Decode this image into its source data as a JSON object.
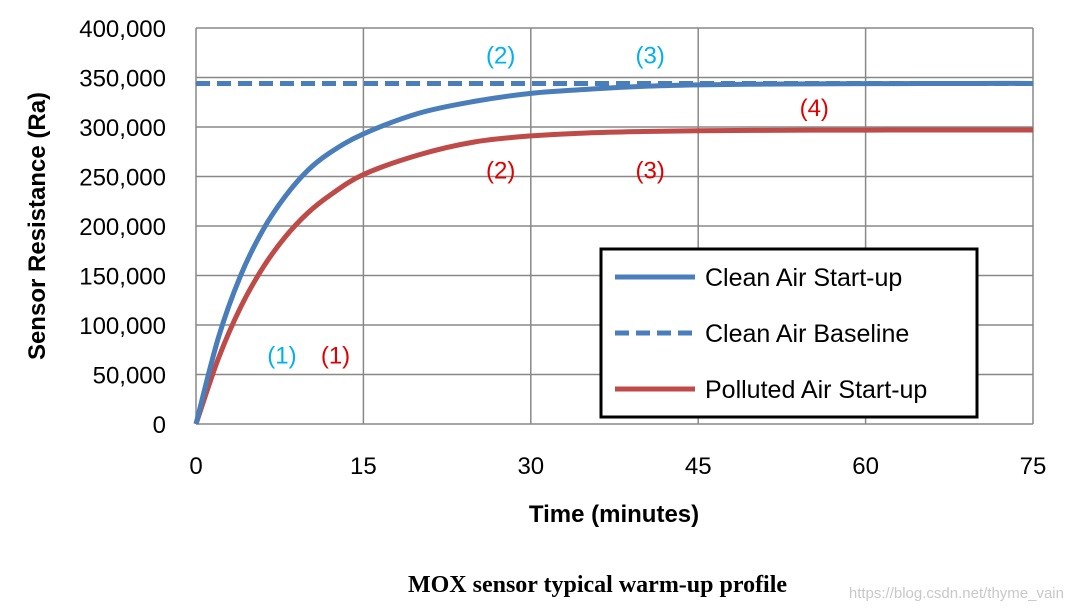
{
  "chart_data": {
    "type": "line",
    "title": "MOX sensor typical warm-up profile",
    "xlabel": "Time (minutes)",
    "ylabel": "Sensor Resistance (Ra)",
    "xlim": [
      0,
      75
    ],
    "ylim": [
      0,
      400000
    ],
    "xticks": [
      0,
      15,
      30,
      45,
      60,
      75
    ],
    "xtick_labels": [
      "0",
      "15",
      "30",
      "45",
      "60",
      "75"
    ],
    "yticks": [
      0,
      50000,
      100000,
      150000,
      200000,
      250000,
      300000,
      350000,
      400000
    ],
    "ytick_labels": [
      "0",
      "50,000",
      "100,000",
      "150,000",
      "200,000",
      "250,000",
      "300,000",
      "350,000",
      "400,000"
    ],
    "grid": true,
    "legend_position": "lower-right",
    "series": [
      {
        "name": "Clean Air Start-up",
        "color": "#4a7ebb",
        "style": "solid",
        "x": [
          0,
          2,
          4,
          6,
          8,
          10,
          12,
          15,
          20,
          25,
          30,
          35,
          40,
          45,
          50,
          55,
          60,
          65,
          70,
          75
        ],
        "y": [
          0,
          87000,
          150000,
          196000,
          230000,
          256000,
          274000,
          293000,
          314000,
          326000,
          334000,
          338000,
          341000,
          342500,
          343200,
          343600,
          343800,
          343900,
          344000,
          344000
        ]
      },
      {
        "name": "Clean Air Baseline",
        "color": "#4a7ebb",
        "style": "dashed",
        "x": [
          0,
          75
        ],
        "y": [
          344000,
          344000
        ]
      },
      {
        "name": "Polluted Air Start-up",
        "color": "#be4b48",
        "style": "solid",
        "x": [
          0,
          2,
          4,
          6,
          8,
          10,
          12,
          15,
          20,
          25,
          30,
          35,
          40,
          45,
          50,
          55,
          60,
          65,
          70,
          75
        ],
        "y": [
          0,
          66000,
          118000,
          158000,
          189000,
          213000,
          231000,
          252000,
          272000,
          285000,
          291000,
          294000,
          295500,
          296200,
          296600,
          296800,
          296900,
          297000,
          297000,
          297000
        ]
      }
    ],
    "annotations": [
      {
        "text": "(1)",
        "x": 7.7,
        "y": 70000,
        "color": "#00b0f0"
      },
      {
        "text": "(1)",
        "x": 12.5,
        "y": 70000,
        "color": "#e00000"
      },
      {
        "text": "(2)",
        "x": 27.3,
        "y": 373000,
        "color": "#00b0f0"
      },
      {
        "text": "(3)",
        "x": 40.7,
        "y": 373000,
        "color": "#00b0f0"
      },
      {
        "text": "(4)",
        "x": 55.4,
        "y": 320000,
        "color": "#e00000"
      },
      {
        "text": "(2)",
        "x": 27.3,
        "y": 257000,
        "color": "#e00000"
      },
      {
        "text": "(3)",
        "x": 40.7,
        "y": 257000,
        "color": "#e00000"
      }
    ]
  },
  "watermark": "https://blog.csdn.net/thyme_vain"
}
